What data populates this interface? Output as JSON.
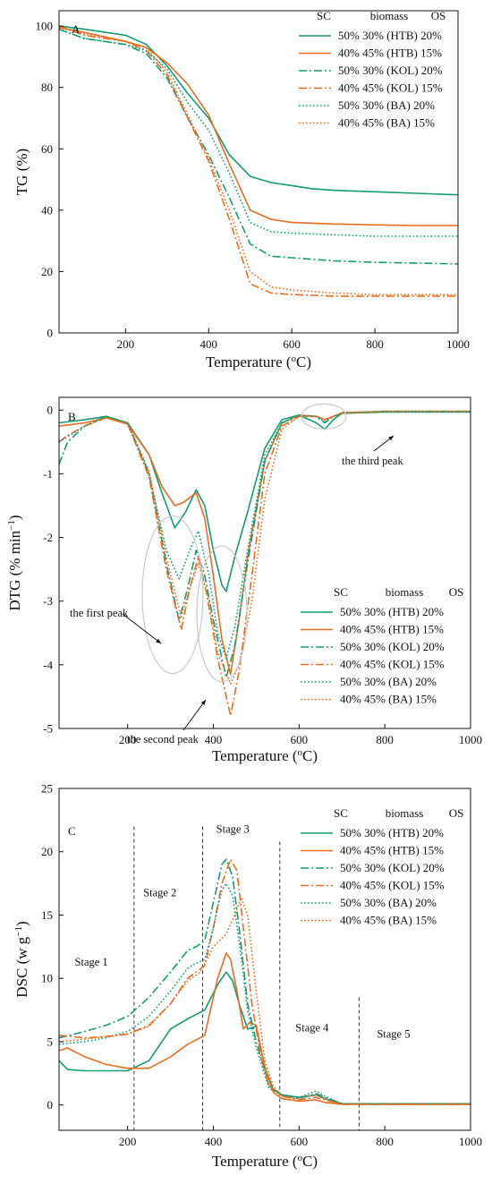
{
  "colors": {
    "green": "#139b72",
    "orange": "#ec6c1e",
    "gray": "#c8c8c8",
    "black": "#111111"
  },
  "legend_header": {
    "sc": "SC",
    "biomass": "biomass",
    "os": "OS"
  },
  "chart_data": [
    {
      "panel": "A",
      "type": "line",
      "xlabel": "Temperature (°C)",
      "ylabel": "TG (%)",
      "xlim": [
        40,
        1000
      ],
      "ylim": [
        0,
        105
      ],
      "xticks": [
        200,
        400,
        600,
        800,
        1000
      ],
      "yticks": [
        0,
        20,
        40,
        60,
        80,
        100
      ],
      "legend_position": "top-right",
      "series": [
        {
          "name": "50% 30% (HTB) 20%",
          "sc": "50%",
          "biomass": "30% (HTB)",
          "os": "20%",
          "color": "green",
          "dash": "solid",
          "x": [
            40,
            100,
            200,
            250,
            300,
            350,
            400,
            450,
            500,
            550,
            600,
            650,
            700,
            800,
            900,
            1000
          ],
          "y": [
            100,
            99,
            97,
            94,
            87,
            78,
            70,
            58,
            51,
            49,
            48,
            47,
            46.5,
            46,
            45.5,
            45
          ]
        },
        {
          "name": "40% 45% (HTB) 15%",
          "sc": "40%",
          "biomass": "45% (HTB)",
          "os": "15%",
          "color": "orange",
          "dash": "solid",
          "x": [
            40,
            100,
            200,
            250,
            300,
            350,
            400,
            450,
            500,
            550,
            600,
            700,
            800,
            900,
            1000
          ],
          "y": [
            99.5,
            98,
            95,
            93,
            88,
            81,
            71,
            55,
            40,
            37,
            36,
            35.5,
            35.2,
            35,
            35
          ]
        },
        {
          "name": "50% 30% (KOL) 20%",
          "sc": "50%",
          "biomass": "30% (KOL)",
          "os": "20%",
          "color": "green",
          "dash": "dashdot",
          "x": [
            40,
            100,
            200,
            250,
            300,
            350,
            400,
            450,
            500,
            550,
            600,
            700,
            800,
            1000
          ],
          "y": [
            99,
            96,
            94,
            91,
            83,
            70,
            58,
            44,
            29,
            25,
            24.5,
            23.5,
            23,
            22.5
          ]
        },
        {
          "name": "40% 45% (KOL) 15%",
          "sc": "40%",
          "biomass": "45% (KOL)",
          "os": "15%",
          "color": "orange",
          "dash": "dashdot",
          "x": [
            40,
            100,
            200,
            250,
            300,
            350,
            400,
            450,
            500,
            550,
            600,
            700,
            800,
            1000
          ],
          "y": [
            100,
            97,
            95,
            92,
            84,
            70,
            56,
            37,
            16,
            13,
            12.5,
            12,
            12,
            12
          ]
        },
        {
          "name": "50% 30% (BA) 20%",
          "sc": "50%",
          "biomass": "30% (BA)",
          "os": "20%",
          "color": "green",
          "dash": "dotted",
          "x": [
            40,
            100,
            200,
            250,
            300,
            350,
            400,
            450,
            500,
            550,
            600,
            700,
            800,
            1000
          ],
          "y": [
            99,
            96,
            94,
            92,
            86,
            75,
            66,
            52,
            36,
            33,
            32.5,
            32,
            31.5,
            31.5
          ]
        },
        {
          "name": "40% 45% (BA) 15%",
          "sc": "40%",
          "biomass": "45% (BA)",
          "os": "15%",
          "color": "orange",
          "dash": "dotted",
          "x": [
            40,
            100,
            200,
            250,
            300,
            350,
            400,
            450,
            500,
            550,
            600,
            700,
            800,
            1000
          ],
          "y": [
            99.5,
            97.5,
            95,
            93,
            85,
            71,
            57,
            40,
            20,
            15,
            14,
            13,
            12.5,
            12.5
          ]
        }
      ]
    },
    {
      "panel": "B",
      "type": "line",
      "xlabel": "Temperature (°C)",
      "ylabel": "DTG (% min⁻¹)",
      "xlim": [
        40,
        1000
      ],
      "ylim": [
        -5,
        0.2
      ],
      "xticks": [
        200,
        400,
        600,
        800,
        1000
      ],
      "yticks": [
        -5,
        -4,
        -3,
        -2,
        -1,
        0
      ],
      "legend_position": "bottom-right",
      "annotations": [
        "the first peak",
        "the second peak",
        "the third peak"
      ],
      "series": [
        {
          "name": "50% 30% (HTB) 20%",
          "sc": "50%",
          "biomass": "30% (HTB)",
          "os": "20%",
          "color": "green",
          "dash": "solid",
          "x": [
            40,
            100,
            150,
            200,
            250,
            280,
            310,
            335,
            360,
            380,
            400,
            420,
            430,
            450,
            480,
            520,
            560,
            600,
            640,
            660,
            680,
            700,
            800,
            1000
          ],
          "y": [
            -0.2,
            -0.15,
            -0.1,
            -0.2,
            -0.7,
            -1.3,
            -1.85,
            -1.6,
            -1.25,
            -1.5,
            -2.2,
            -2.75,
            -2.85,
            -2.3,
            -1.6,
            -0.6,
            -0.15,
            -0.08,
            -0.2,
            -0.3,
            -0.15,
            -0.05,
            -0.03,
            -0.03
          ]
        },
        {
          "name": "40% 45% (HTB) 15%",
          "sc": "40%",
          "biomass": "45% (HTB)",
          "os": "15%",
          "color": "orange",
          "dash": "solid",
          "x": [
            40,
            100,
            150,
            200,
            250,
            280,
            310,
            330,
            360,
            380,
            400,
            420,
            440,
            460,
            480,
            520,
            560,
            600,
            640,
            660,
            680,
            700,
            800,
            1000
          ],
          "y": [
            -0.25,
            -0.2,
            -0.12,
            -0.22,
            -0.7,
            -1.2,
            -1.5,
            -1.45,
            -1.3,
            -1.7,
            -2.6,
            -3.6,
            -4.15,
            -3.3,
            -2.3,
            -0.8,
            -0.2,
            -0.08,
            -0.1,
            -0.15,
            -0.1,
            -0.04,
            -0.02,
            -0.02
          ]
        },
        {
          "name": "50% 30% (KOL) 20%",
          "sc": "50%",
          "biomass": "30% (KOL)",
          "os": "20%",
          "color": "green",
          "dash": "dashdot",
          "x": [
            40,
            60,
            100,
            150,
            200,
            250,
            290,
            320,
            340,
            360,
            380,
            400,
            430,
            450,
            480,
            520,
            560,
            600,
            640,
            660,
            680,
            700,
            800,
            1000
          ],
          "y": [
            -0.85,
            -0.5,
            -0.25,
            -0.1,
            -0.2,
            -1.0,
            -2.4,
            -3.3,
            -2.8,
            -2.2,
            -2.6,
            -3.3,
            -4.2,
            -3.7,
            -2.4,
            -0.8,
            -0.2,
            -0.08,
            -0.1,
            -0.2,
            -0.1,
            -0.05,
            -0.02,
            -0.02
          ]
        },
        {
          "name": "40% 45% (KOL) 15%",
          "sc": "40%",
          "biomass": "45% (KOL)",
          "os": "15%",
          "color": "orange",
          "dash": "dashdot",
          "x": [
            40,
            60,
            100,
            150,
            200,
            250,
            290,
            325,
            345,
            365,
            385,
            410,
            440,
            460,
            490,
            520,
            560,
            600,
            640,
            660,
            680,
            700,
            800,
            1000
          ],
          "y": [
            -0.5,
            -0.4,
            -0.25,
            -0.12,
            -0.22,
            -1.05,
            -2.5,
            -3.45,
            -2.8,
            -2.3,
            -2.9,
            -3.9,
            -4.8,
            -4.1,
            -2.6,
            -1.0,
            -0.25,
            -0.1,
            -0.1,
            -0.15,
            -0.1,
            -0.05,
            -0.02,
            -0.02
          ]
        },
        {
          "name": "50% 30% (BA) 20%",
          "sc": "50%",
          "biomass": "30% (BA)",
          "os": "20%",
          "color": "green",
          "dash": "dotted",
          "x": [
            40,
            100,
            150,
            200,
            250,
            290,
            320,
            345,
            365,
            390,
            410,
            430,
            450,
            480,
            520,
            560,
            600,
            640,
            660,
            680,
            700,
            800,
            1000
          ],
          "y": [
            -0.5,
            -0.25,
            -0.1,
            -0.2,
            -1.0,
            -2.2,
            -2.65,
            -2.2,
            -1.9,
            -2.6,
            -3.5,
            -3.9,
            -3.4,
            -2.2,
            -0.7,
            -0.2,
            -0.08,
            -0.1,
            -0.18,
            -0.1,
            -0.05,
            -0.02,
            -0.02
          ]
        },
        {
          "name": "40% 45% (BA) 15%",
          "sc": "40%",
          "biomass": "45% (BA)",
          "os": "15%",
          "color": "orange",
          "dash": "dotted",
          "x": [
            40,
            100,
            150,
            200,
            250,
            290,
            325,
            345,
            365,
            390,
            410,
            440,
            460,
            490,
            520,
            560,
            600,
            640,
            660,
            680,
            700,
            800,
            1000
          ],
          "y": [
            -0.25,
            -0.2,
            -0.12,
            -0.2,
            -0.95,
            -2.3,
            -3.25,
            -2.8,
            -2.4,
            -3.0,
            -3.8,
            -4.3,
            -4.0,
            -3.0,
            -1.4,
            -0.3,
            -0.1,
            -0.1,
            -0.15,
            -0.1,
            -0.05,
            -0.02,
            -0.02
          ]
        }
      ]
    },
    {
      "panel": "C",
      "type": "line",
      "xlabel": "Temperature (°C)",
      "ylabel": "DSC (w g⁻¹)",
      "xlim": [
        40,
        1000
      ],
      "ylim": [
        -2,
        25
      ],
      "xticks": [
        200,
        400,
        600,
        800,
        1000
      ],
      "yticks": [
        0,
        5,
        10,
        15,
        20,
        25
      ],
      "legend_position": "top-right",
      "stage_boundaries": [
        215,
        375,
        555,
        740
      ],
      "stage_labels": [
        "Stage 1",
        "Stage 2",
        "Stage 3",
        "Stage 4",
        "Stage 5"
      ],
      "series": [
        {
          "name": "50% 30% (HTB) 20%",
          "sc": "50%",
          "biomass": "30% (HTB)",
          "os": "20%",
          "color": "green",
          "dash": "solid",
          "x": [
            40,
            60,
            100,
            150,
            200,
            250,
            300,
            340,
            380,
            410,
            430,
            445,
            460,
            480,
            500,
            520,
            540,
            560,
            600,
            640,
            660,
            700,
            800,
            1000
          ],
          "y": [
            3.5,
            2.8,
            2.7,
            2.7,
            2.7,
            3.5,
            6.0,
            6.8,
            7.5,
            9.5,
            10.5,
            9.8,
            8.0,
            6.0,
            6.2,
            3.0,
            1.2,
            0.8,
            0.6,
            0.8,
            0.5,
            0.1,
            0.1,
            0.1
          ]
        },
        {
          "name": "40% 45% (HTB) 15%",
          "sc": "40%",
          "biomass": "45% (HTB)",
          "os": "15%",
          "color": "orange",
          "dash": "solid",
          "x": [
            40,
            60,
            100,
            150,
            200,
            250,
            300,
            340,
            380,
            410,
            430,
            440,
            455,
            470,
            485,
            500,
            520,
            540,
            560,
            600,
            640,
            660,
            700,
            800,
            1000
          ],
          "y": [
            4.3,
            4.5,
            3.8,
            3.2,
            2.9,
            2.9,
            3.8,
            4.8,
            5.5,
            10.0,
            12.0,
            11.5,
            9.0,
            6.0,
            6.5,
            6.3,
            3.0,
            1.0,
            0.5,
            0.3,
            0.4,
            0.2,
            0.05,
            0.05,
            0.05
          ]
        },
        {
          "name": "50% 30% (KOL) 20%",
          "sc": "50%",
          "biomass": "30% (KOL)",
          "os": "20%",
          "color": "green",
          "dash": "dashdot",
          "x": [
            40,
            100,
            150,
            200,
            250,
            300,
            340,
            360,
            380,
            400,
            420,
            430,
            445,
            460,
            480,
            500,
            530,
            560,
            600,
            640,
            660,
            700,
            800,
            1000
          ],
          "y": [
            5.3,
            5.8,
            6.3,
            7.0,
            8.5,
            10.5,
            12.2,
            12.5,
            13.0,
            16.0,
            19.0,
            19.4,
            18.0,
            14.0,
            8.0,
            5.0,
            1.5,
            0.8,
            0.5,
            0.9,
            0.6,
            0.1,
            0.1,
            0.1
          ]
        },
        {
          "name": "40% 45% (KOL) 15%",
          "sc": "40%",
          "biomass": "45% (KOL)",
          "os": "15%",
          "color": "orange",
          "dash": "dashdot",
          "x": [
            40,
            100,
            150,
            200,
            250,
            300,
            340,
            360,
            380,
            400,
            420,
            440,
            455,
            470,
            490,
            510,
            530,
            560,
            600,
            640,
            660,
            700,
            800,
            1000
          ],
          "y": [
            5.5,
            5.3,
            5.4,
            5.6,
            6.3,
            8.0,
            10.0,
            10.5,
            11.0,
            14.0,
            17.5,
            19.4,
            18.5,
            14.0,
            8.0,
            4.0,
            1.5,
            0.7,
            0.4,
            0.6,
            0.4,
            0.05,
            0.05,
            0.05
          ]
        },
        {
          "name": "50% 30% (BA) 20%",
          "sc": "50%",
          "biomass": "30% (BA)",
          "os": "20%",
          "color": "green",
          "dash": "dotted",
          "x": [
            40,
            100,
            150,
            200,
            250,
            300,
            340,
            360,
            380,
            400,
            420,
            430,
            445,
            460,
            480,
            500,
            530,
            560,
            600,
            640,
            660,
            700,
            800,
            1000
          ],
          "y": [
            4.8,
            5.0,
            5.3,
            5.8,
            7.0,
            9.0,
            10.8,
            11.2,
            11.5,
            14.0,
            17.0,
            17.5,
            16.5,
            13.0,
            7.5,
            4.5,
            1.3,
            0.8,
            0.6,
            1.1,
            0.7,
            0.1,
            0.1,
            0.1
          ]
        },
        {
          "name": "40% 45% (BA) 15%",
          "sc": "40%",
          "biomass": "45% (BA)",
          "os": "15%",
          "color": "orange",
          "dash": "dotted",
          "x": [
            40,
            100,
            150,
            200,
            250,
            300,
            340,
            370,
            400,
            430,
            450,
            465,
            480,
            500,
            520,
            540,
            560,
            600,
            640,
            660,
            700,
            800,
            1000
          ],
          "y": [
            5.0,
            5.2,
            5.4,
            5.6,
            6.2,
            8.0,
            9.8,
            10.5,
            12.5,
            13.5,
            15.0,
            16.4,
            15.0,
            9.0,
            3.5,
            1.5,
            0.7,
            0.5,
            0.8,
            0.5,
            0.05,
            0.05,
            0.05
          ]
        }
      ]
    }
  ]
}
